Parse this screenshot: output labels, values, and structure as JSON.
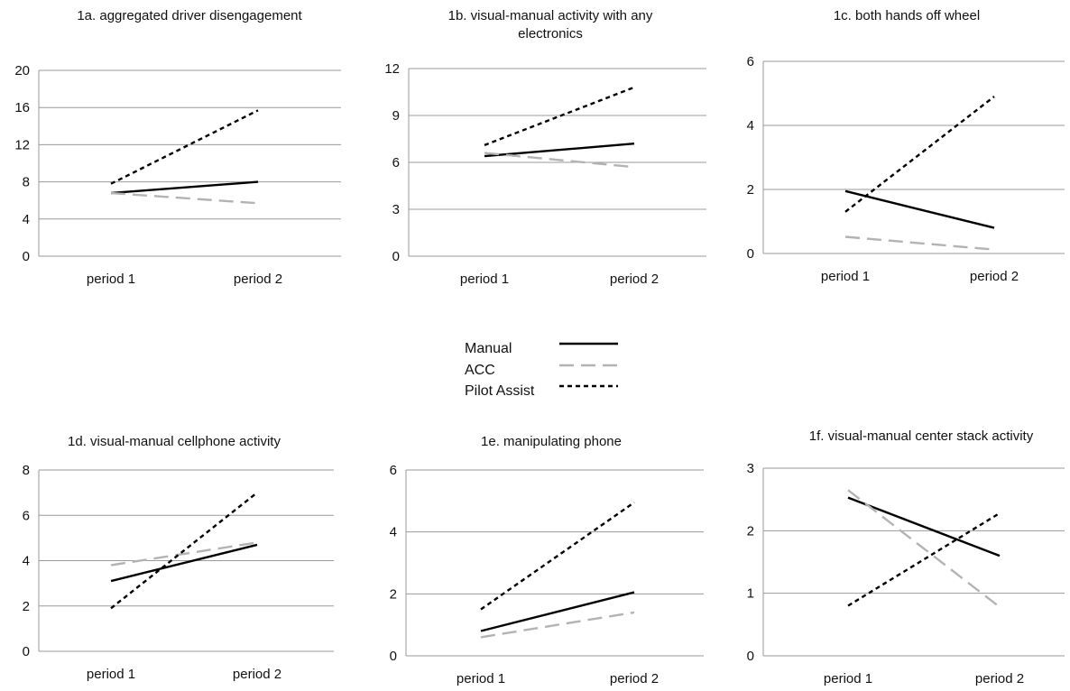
{
  "legend": [
    {
      "name": "Manual",
      "color": "#000000",
      "style": "solid"
    },
    {
      "name": "ACC",
      "color": "#b3b3b3",
      "style": "long-dash"
    },
    {
      "name": "Pilot Assist",
      "color": "#000000",
      "style": "short-dash"
    }
  ],
  "chart_data": [
    {
      "type": "line",
      "title": [
        "1a. aggregated driver disengagement"
      ],
      "categories": [
        "period 1",
        "period 2"
      ],
      "ylim": [
        0,
        20
      ],
      "yticks": [
        0,
        4,
        8,
        12,
        16,
        20
      ],
      "grid": true,
      "series": [
        {
          "name": "Manual",
          "values": [
            6.8,
            8.0
          ]
        },
        {
          "name": "ACC",
          "values": [
            6.8,
            5.7
          ]
        },
        {
          "name": "Pilot Assist",
          "values": [
            7.8,
            15.7
          ]
        }
      ]
    },
    {
      "type": "line",
      "title": [
        "1b.  visual-manual activity with any",
        "electronics"
      ],
      "categories": [
        "period 1",
        "period 2"
      ],
      "ylim": [
        0,
        12
      ],
      "yticks": [
        0,
        3,
        6,
        9,
        12
      ],
      "grid": true,
      "series": [
        {
          "name": "Manual",
          "values": [
            6.4,
            7.2
          ]
        },
        {
          "name": "ACC",
          "values": [
            6.6,
            5.7
          ]
        },
        {
          "name": "Pilot Assist",
          "values": [
            7.1,
            10.8
          ]
        }
      ]
    },
    {
      "type": "line",
      "title": [
        "1c.  both hands off wheel"
      ],
      "categories": [
        "period 1",
        "period 2"
      ],
      "ylim": [
        0,
        6
      ],
      "yticks": [
        0,
        2,
        4,
        6
      ],
      "grid": true,
      "series": [
        {
          "name": "Manual",
          "values": [
            1.95,
            0.8
          ]
        },
        {
          "name": "ACC",
          "values": [
            0.52,
            0.12
          ]
        },
        {
          "name": "Pilot Assist",
          "values": [
            1.3,
            4.9
          ]
        }
      ]
    },
    {
      "type": "line",
      "title": [
        "1d.  visual-manual cellphone activity"
      ],
      "categories": [
        "period 1",
        "period 2"
      ],
      "ylim": [
        0,
        8
      ],
      "yticks": [
        0,
        2,
        4,
        6,
        8
      ],
      "grid": true,
      "series": [
        {
          "name": "Manual",
          "values": [
            3.1,
            4.7
          ]
        },
        {
          "name": "ACC",
          "values": [
            3.8,
            4.8
          ]
        },
        {
          "name": "Pilot Assist",
          "values": [
            1.9,
            7.0
          ]
        }
      ]
    },
    {
      "type": "line",
      "title": [
        "1e.  manipulating phone"
      ],
      "categories": [
        "period 1",
        "period 2"
      ],
      "ylim": [
        0,
        6
      ],
      "yticks": [
        0,
        2,
        4,
        6
      ],
      "grid": true,
      "series": [
        {
          "name": "Manual",
          "values": [
            0.8,
            2.05
          ]
        },
        {
          "name": "ACC",
          "values": [
            0.6,
            1.4
          ]
        },
        {
          "name": "Pilot Assist",
          "values": [
            1.5,
            4.95
          ]
        }
      ]
    },
    {
      "type": "line",
      "title": [
        "1f. visual-manual center stack activity"
      ],
      "categories": [
        "period 1",
        "period 2"
      ],
      "ylim": [
        0,
        3
      ],
      "yticks": [
        0,
        1,
        2,
        3
      ],
      "grid": true,
      "series": [
        {
          "name": "Manual",
          "values": [
            2.53,
            1.6
          ]
        },
        {
          "name": "ACC",
          "values": [
            2.65,
            0.78
          ]
        },
        {
          "name": "Pilot Assist",
          "values": [
            0.8,
            2.28
          ]
        }
      ]
    }
  ]
}
